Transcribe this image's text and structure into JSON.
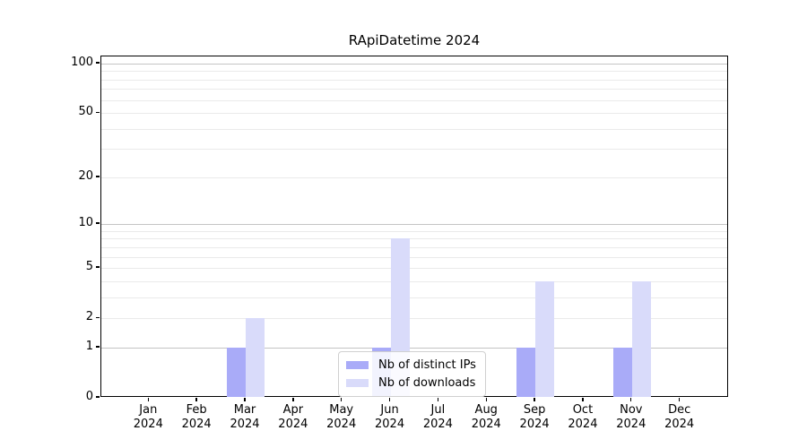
{
  "title": "RApiDatetime 2024",
  "chart_data": {
    "type": "bar",
    "title": "RApiDatetime 2024",
    "categories": [
      "Jan",
      "Feb",
      "Mar",
      "Apr",
      "May",
      "Jun",
      "Jul",
      "Aug",
      "Sep",
      "Oct",
      "Nov",
      "Dec"
    ],
    "year_label": "2024",
    "series": [
      {
        "name": "Nb of distinct IPs",
        "color": "#a9abf8",
        "values": [
          0,
          0,
          1,
          0,
          0,
          1,
          0,
          0,
          1,
          0,
          1,
          0
        ]
      },
      {
        "name": "Nb of downloads",
        "color": "#d9dbfa",
        "values": [
          0,
          0,
          2,
          0,
          0,
          8,
          0,
          0,
          4,
          0,
          4,
          0
        ]
      }
    ],
    "yscale": "log1p",
    "ylim": [
      0,
      110
    ],
    "yticks": [
      {
        "value": 0,
        "label": "0"
      },
      {
        "value": 1,
        "label": "1"
      },
      {
        "value": 2,
        "label": "2"
      },
      {
        "value": 5,
        "label": "5"
      },
      {
        "value": 10,
        "label": "10"
      },
      {
        "value": 20,
        "label": "20"
      },
      {
        "value": 50,
        "label": "50"
      },
      {
        "value": 100,
        "label": "100"
      }
    ],
    "grid": {
      "major_values": [
        1,
        10,
        100
      ],
      "minor_values": [
        2,
        3,
        4,
        5,
        6,
        7,
        8,
        9,
        20,
        30,
        40,
        50,
        60,
        70,
        80,
        90
      ],
      "major_color": "#c4c4c4",
      "minor_color": "#eaeaea"
    },
    "legend_position": "lower center",
    "axis_color": "#000000",
    "background_color": "#ffffff"
  }
}
